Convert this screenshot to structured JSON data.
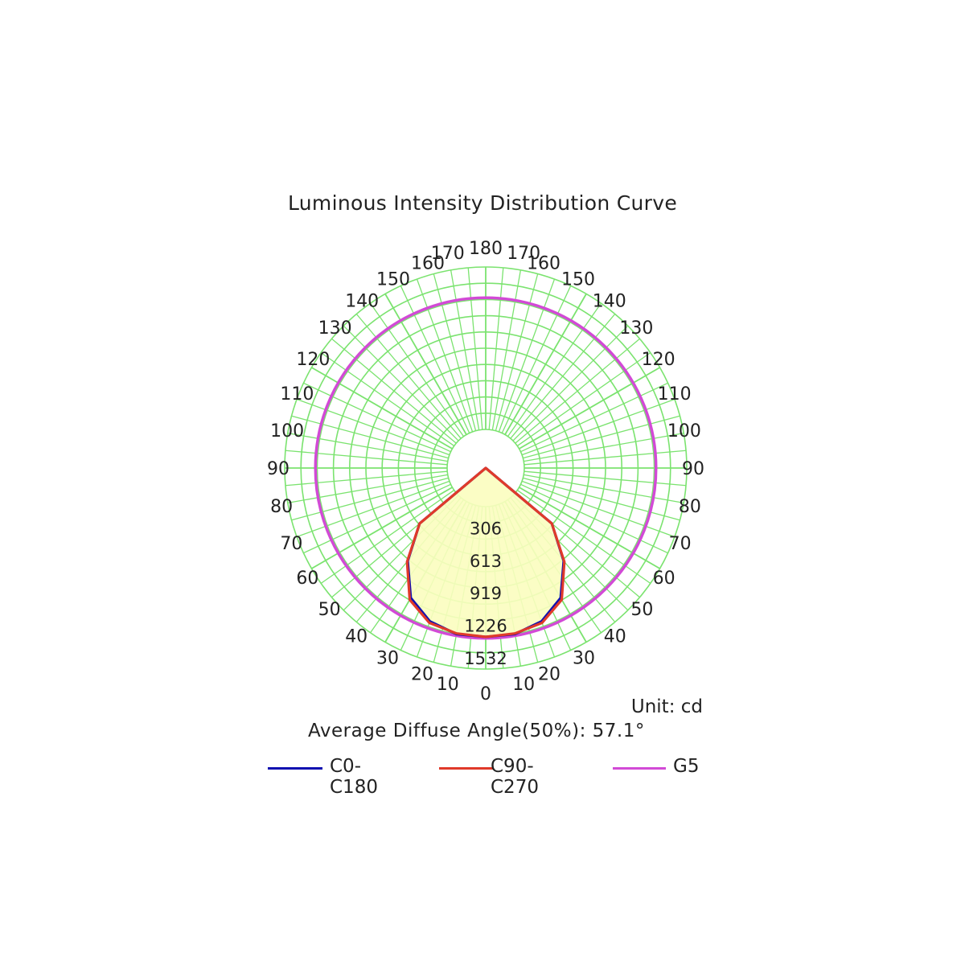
{
  "chart_data": {
    "type": "polar",
    "title": "Luminous Intensity Distribution Curve",
    "unit_label": "Unit: cd",
    "diffuse_angle_label": "Average Diffuse Angle(50%): 57.1°",
    "radial_labels": [
      "306",
      "613",
      "919",
      "1226",
      "1532"
    ],
    "radial_values": [
      306,
      613,
      919,
      1226,
      1532
    ],
    "angle_labels_left": [
      "0",
      "10",
      "20",
      "30",
      "40",
      "50",
      "60",
      "70",
      "80",
      "90",
      "100",
      "110",
      "120",
      "130",
      "140",
      "150",
      "160",
      "170",
      "180"
    ],
    "angle_labels_right": [
      "10",
      "20",
      "30",
      "40",
      "50",
      "60",
      "70",
      "80",
      "90",
      "100",
      "110",
      "120",
      "130",
      "140",
      "150",
      "160",
      "170"
    ],
    "angle_values": [
      0,
      10,
      20,
      30,
      40,
      50,
      60,
      70,
      80,
      90,
      100,
      110,
      120,
      130,
      140,
      150,
      160,
      170,
      180
    ],
    "grid": true,
    "series": [
      {
        "name": "C0-C180",
        "color": "#1010b0",
        "angles": [
          0,
          10,
          20,
          30,
          40,
          50,
          60
        ],
        "values": [
          1229,
          1226,
          1175,
          1050,
          780,
          450,
          0
        ]
      },
      {
        "name": "C90-C270",
        "color": "#e03a2a",
        "angles": [
          0,
          10,
          20,
          30,
          40,
          50,
          60
        ],
        "values": [
          1229,
          1220,
          1190,
          1070,
          790,
          450,
          0
        ]
      },
      {
        "name": "G5",
        "color": "#d24ad6",
        "angles": [
          0,
          30,
          60,
          90,
          120,
          150,
          180
        ],
        "values": [
          1242,
          1242,
          1242,
          1242,
          1242,
          1242,
          1242
        ]
      }
    ],
    "legend_placement": "bottom"
  },
  "colors": {
    "grid": "#7be36f",
    "fill": "#fbfdbf"
  }
}
